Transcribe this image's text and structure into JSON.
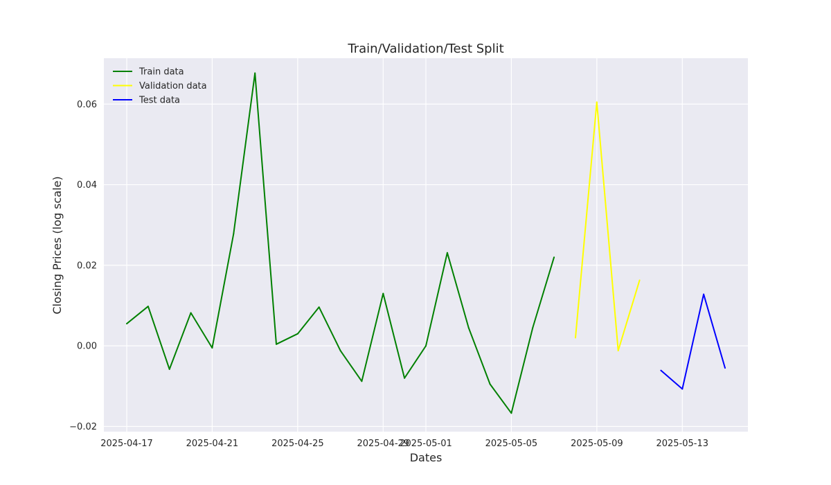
{
  "chart_data": {
    "type": "line",
    "title": "Train/Validation/Test Split",
    "xlabel": "Dates",
    "ylabel": "Closing Prices (log scale)",
    "xlim": [
      "2025-04-15.93",
      "2025-05-16.07"
    ],
    "ylim": [
      -0.0213,
      0.0714
    ],
    "grid": true,
    "legend_position": "top-left",
    "x_ticks": [
      "2025-04-17",
      "2025-04-21",
      "2025-04-25",
      "2025-04-29",
      "2025-05-01",
      "2025-05-05",
      "2025-05-09",
      "2025-05-13"
    ],
    "y_ticks": [
      -0.02,
      0.0,
      0.02,
      0.04,
      0.06
    ],
    "y_tick_labels": [
      "−0.02",
      "0.00",
      "0.02",
      "0.04",
      "0.06"
    ],
    "series": [
      {
        "name": "Train data",
        "color": "#008000",
        "x": [
          "2025-04-17",
          "2025-04-18",
          "2025-04-19",
          "2025-04-20",
          "2025-04-21",
          "2025-04-22",
          "2025-04-23",
          "2025-04-24",
          "2025-04-25",
          "2025-04-26",
          "2025-04-27",
          "2025-04-28",
          "2025-04-29",
          "2025-04-30",
          "2025-05-01",
          "2025-05-02",
          "2025-05-03",
          "2025-05-04",
          "2025-05-05",
          "2025-05-06",
          "2025-05-07"
        ],
        "values": [
          0.0055,
          0.0098,
          -0.0058,
          0.0082,
          -0.0005,
          0.0278,
          0.0677,
          0.0004,
          0.003,
          0.0096,
          -0.0012,
          -0.0088,
          0.013,
          -0.008,
          0.0,
          0.0231,
          0.0045,
          -0.0095,
          -0.0167,
          0.0045,
          0.022
        ]
      },
      {
        "name": "Validation data",
        "color": "#ffff00",
        "x": [
          "2025-05-08",
          "2025-05-09",
          "2025-05-10",
          "2025-05-11"
        ],
        "values": [
          0.002,
          0.0605,
          -0.0012,
          0.0163
        ]
      },
      {
        "name": "Test data",
        "color": "#0000ff",
        "x": [
          "2025-05-12",
          "2025-05-13",
          "2025-05-14",
          "2025-05-15"
        ],
        "values": [
          -0.0061,
          -0.0107,
          0.0128,
          -0.0055
        ]
      }
    ]
  }
}
